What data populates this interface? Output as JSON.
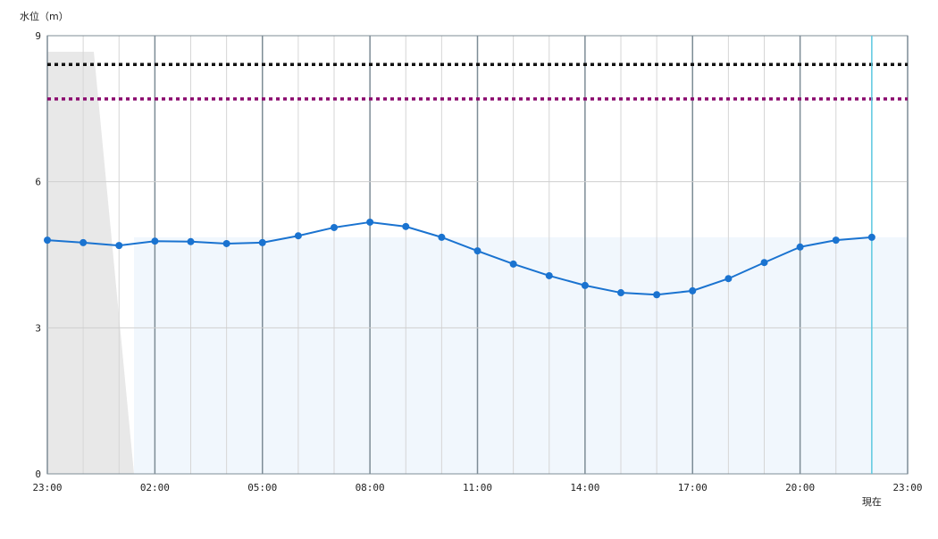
{
  "chart_data": {
    "type": "line",
    "y_label": "水位（m）",
    "categories": [
      "23:00",
      null,
      null,
      "02:00",
      null,
      null,
      "05:00",
      null,
      null,
      "08:00",
      null,
      null,
      "11:00",
      null,
      null,
      "14:00",
      null,
      null,
      "17:00",
      null,
      null,
      "20:00",
      null,
      null,
      "23:00"
    ],
    "series": [
      {
        "color": "#1a73d0",
        "values": [
          4.8,
          4.75,
          4.69,
          4.78,
          4.77,
          4.73,
          4.75,
          4.89,
          5.06,
          5.17,
          5.08,
          4.86,
          4.58,
          4.31,
          4.07,
          3.87,
          3.72,
          3.68,
          3.76,
          4.01,
          4.34,
          4.66,
          4.8,
          4.86,
          null
        ]
      }
    ],
    "reference_lines": [
      {
        "value": 8.41,
        "color": "#111111"
      },
      {
        "value": 7.7,
        "color": "#8b0a6e"
      }
    ],
    "now_label": "現在",
    "now_index": 23,
    "now_color": "#5bc8e0",
    "ylim": [
      0,
      9
    ],
    "yticks": [
      0,
      3,
      6,
      9
    ],
    "grid": true
  }
}
